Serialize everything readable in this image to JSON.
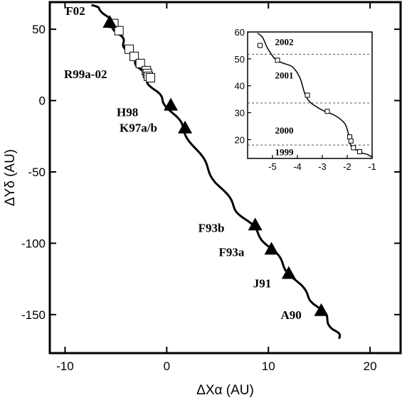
{
  "chart_data": [
    {
      "type": "line",
      "xlabel": "ΔXα (AU)",
      "ylabel": "ΔYδ (AU)",
      "xlim": [
        -11.5,
        23
      ],
      "ylim": [
        -177,
        69
      ],
      "xticks": [
        -10,
        0,
        10,
        20
      ],
      "yticks": [
        50,
        0,
        -50,
        -100,
        -150
      ],
      "grid": false,
      "series": [
        {
          "role": "trajectory",
          "x": [
            -7.4,
            -6.3,
            -5.4,
            -4.6,
            -3.9,
            -3.0,
            -2.2,
            -1.3,
            0.0,
            1.5,
            3.2,
            5.0,
            6.8,
            8.5,
            10.3,
            12.0,
            13.8,
            15.3,
            16.4,
            17.1
          ],
          "y": [
            67,
            63,
            54,
            45,
            36,
            27,
            18,
            8,
            -3,
            -18,
            -38,
            -58,
            -76,
            -89,
            -104,
            -120,
            -136,
            -148,
            -160,
            -167
          ]
        },
        {
          "role": "triangles",
          "points": [
            {
              "label": "F02",
              "x": -5.6,
              "y": 55
            },
            {
              "label": "H98",
              "x": 0.4,
              "y": -3
            },
            {
              "label": "K97a/b",
              "x": 1.8,
              "y": -19
            },
            {
              "label": "F93b",
              "x": 8.7,
              "y": -87
            },
            {
              "label": "F93a",
              "x": 10.3,
              "y": -104
            },
            {
              "label": "J91",
              "x": 12.0,
              "y": -121
            },
            {
              "label": "A90",
              "x": 15.2,
              "y": -147
            }
          ]
        },
        {
          "role": "squares",
          "label": "R99a-02",
          "x": [
            -5.2,
            -4.7,
            -3.7,
            -3.2,
            -2.6,
            -2.0,
            -1.9,
            -1.8,
            -1.6
          ],
          "y": [
            54,
            49,
            36,
            31,
            26,
            21,
            19,
            17,
            16
          ]
        }
      ]
    },
    {
      "type": "line",
      "inset": true,
      "xlim": [
        -6,
        -1
      ],
      "ylim": [
        13,
        60
      ],
      "xticks": [
        -5,
        -4,
        -3,
        -2,
        -1
      ],
      "yticks": [
        60,
        50,
        40,
        30,
        20
      ],
      "grid": false,
      "year_lines": [
        {
          "label": "2002",
          "y": 51.7
        },
        {
          "label": "2001",
          "y": 33.6
        },
        {
          "label": "2000",
          "y": 18.0
        },
        {
          "label": "1999",
          "y": 18.0
        }
      ],
      "curve": {
        "x": [
          -5.6,
          -5.4,
          -5.2,
          -4.9,
          -4.6,
          -4.2,
          -3.9,
          -3.7,
          -3.5,
          -3.2,
          -2.9,
          -2.5,
          -2.1,
          -1.95,
          -1.9,
          -1.8,
          -1.6,
          -1.4,
          -1.2,
          -1.0
        ],
        "y": [
          59.5,
          58.0,
          54.0,
          50.0,
          48.5,
          47.0,
          43.0,
          37.0,
          34.0,
          32.0,
          30.5,
          29.0,
          26.0,
          22.0,
          19.0,
          17.0,
          16.0,
          15.0,
          14.5,
          13.5
        ]
      },
      "squares": {
        "x": [
          -5.5,
          -4.8,
          -3.6,
          -2.8,
          -1.9,
          -1.85,
          -1.75,
          -1.5
        ],
        "y": [
          55,
          49.5,
          36.5,
          30.5,
          21,
          19.5,
          17,
          15.5
        ]
      }
    }
  ]
}
